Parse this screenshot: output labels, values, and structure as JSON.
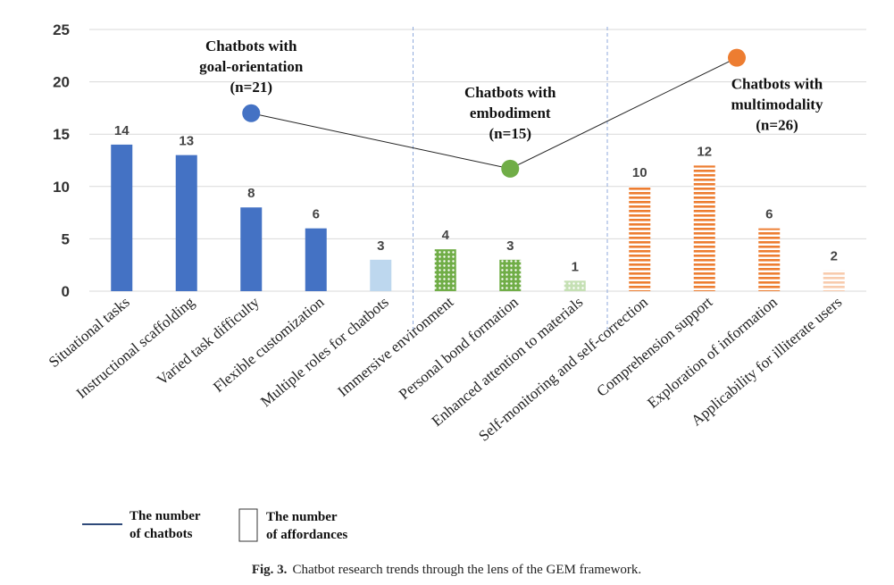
{
  "chart_data": {
    "type": "bar",
    "ylim": [
      0,
      25
    ],
    "yticks": [
      0,
      5,
      10,
      15,
      20,
      25
    ],
    "grid": true,
    "categories": [
      "Situational tasks",
      "Instructional scaffolding",
      "Varied task difficulty",
      "Flexible customization",
      "Multiple roles for chatbots",
      "Immersive environment",
      "Personal bond formation",
      "Enhanced attention to materials",
      "Self-monitoring and self-correction",
      "Comprehension support",
      "Exploration of information",
      "Applicability for illiterate users"
    ],
    "values": [
      14,
      13,
      8,
      6,
      3,
      4,
      3,
      1,
      10,
      12,
      6,
      2
    ],
    "bar_groups": [
      "goal",
      "goal",
      "goal",
      "goal",
      "goal-light",
      "embodiment",
      "embodiment",
      "embodiment-light",
      "multimodality",
      "multimodality",
      "multimodality",
      "multimodality-light"
    ],
    "groups": [
      {
        "key": "goal",
        "label_lines": [
          "Chatbots with",
          "goal-orientation",
          "(n=21)"
        ],
        "count": 21,
        "color": "#4472C4"
      },
      {
        "key": "embodiment",
        "label_lines": [
          "Chatbots with",
          "embodiment",
          "(n=15)"
        ],
        "count": 15,
        "color": "#70AD47"
      },
      {
        "key": "multimodality",
        "label_lines": [
          "Chatbots with",
          "multimodality",
          "(n=26)"
        ],
        "count": 26,
        "color": "#ED7D31"
      }
    ],
    "chatbot_line": [
      {
        "group": "goal",
        "value": 17,
        "color": "#4472C4"
      },
      {
        "group": "embodiment",
        "value": 11.7,
        "color": "#70AD47"
      },
      {
        "group": "multimodality",
        "value": 22.3,
        "color": "#ED7D31"
      }
    ],
    "legend": {
      "line_label_lines": [
        "The number",
        "of chatbots"
      ],
      "box_label_lines": [
        "The number",
        "of affordances"
      ]
    }
  },
  "caption": {
    "prefix": "Fig. 3.",
    "text": "Chatbot research trends through the lens of the GEM framework."
  }
}
